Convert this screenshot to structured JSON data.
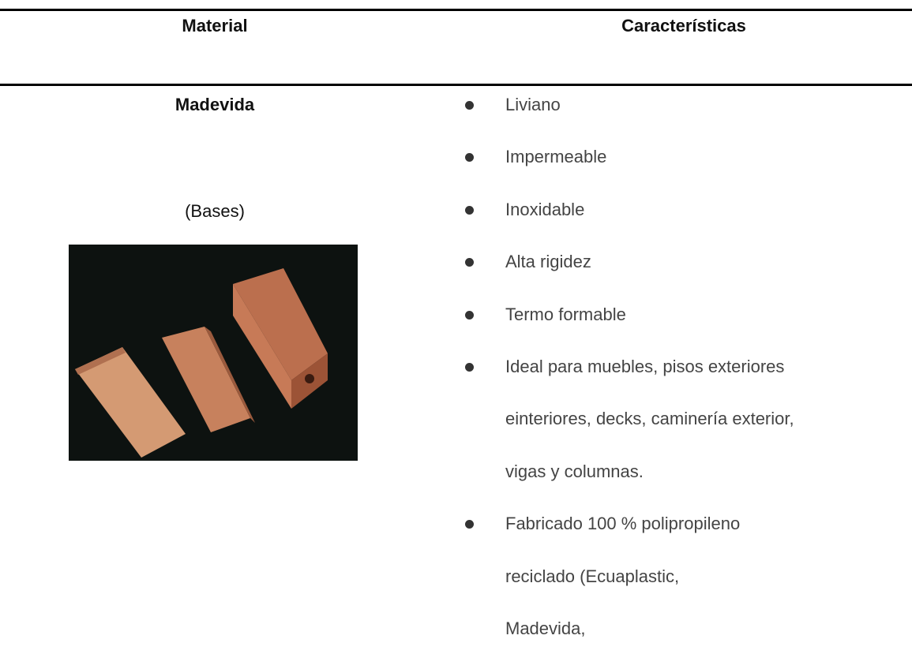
{
  "table": {
    "headers": [
      "Material",
      "Características"
    ],
    "rows": [
      {
        "material": "Madevida",
        "note": "(Bases)",
        "features": [
          [
            "Liviano"
          ],
          [
            "Impermeable"
          ],
          [
            "Inoxidable"
          ],
          [
            "Alta rigidez"
          ],
          [
            "Termo formable"
          ],
          [
            "Ideal para muebles, pisos exteriores",
            "einteriores, decks, caminería exterior,",
            "vigas y columnas."
          ],
          [
            "Fabricado 100 % polipropileno",
            "reciclado (Ecuaplastic,",
            "Madevida,"
          ]
        ]
      }
    ]
  }
}
